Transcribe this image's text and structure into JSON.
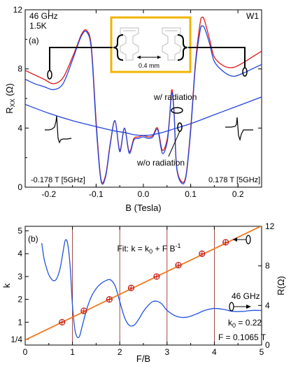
{
  "chart_data": [
    {
      "type": "line",
      "panel_label": "(a)",
      "annotations": {
        "freq": "46 GHz",
        "temp": "1.5K",
        "sample": "W1",
        "with_rad": "w/ radiation",
        "without_rad": "w/o radiation",
        "left_peak": "-0.178 T [5GHz]",
        "right_peak": "0.178 T [5GHz]",
        "scale": "0.4 mm"
      },
      "xlabel": "B (Tesla)",
      "ylabel_main": "R",
      "ylabel_sub": "XX",
      "ylabel_unit": " (Ω)",
      "xlim": [
        -0.25,
        0.25
      ],
      "ylim": [
        0,
        12
      ],
      "xticks": [
        "-0.2",
        "-0.1",
        "0.0",
        "0.1",
        "0.2"
      ],
      "xtick_values": [
        -0.2,
        -0.1,
        0.0,
        0.1,
        0.2
      ],
      "yticks": [
        "0",
        "4",
        "8",
        "12"
      ],
      "ytick_values": [
        0,
        4,
        8,
        12
      ],
      "colors": {
        "with_radiation": "#e01818",
        "without_radiation": "#2244dd",
        "purple": "#7a2a99",
        "inset_frame": "#f0b400"
      },
      "series": [
        {
          "color": "#e01818",
          "x": [
            -0.25,
            -0.23,
            -0.21,
            -0.19,
            -0.17,
            -0.15,
            -0.14,
            -0.13,
            -0.12,
            -0.11,
            -0.1,
            -0.09,
            -0.08,
            -0.07,
            -0.06,
            -0.05,
            -0.04,
            -0.03,
            -0.02,
            -0.01,
            0.0,
            0.01,
            0.02,
            0.03,
            0.04,
            0.05,
            0.055,
            0.06,
            0.065,
            0.07,
            0.08,
            0.09,
            0.1,
            0.11,
            0.12,
            0.125,
            0.13,
            0.14,
            0.15,
            0.17,
            0.19,
            0.21,
            0.23,
            0.25
          ],
          "values": [
            7.9,
            7.6,
            7.3,
            7.0,
            7.4,
            8.8,
            9.6,
            10.4,
            10.6,
            9.5,
            4.5,
            0.6,
            0.8,
            3.0,
            4.5,
            2.5,
            4.0,
            2.4,
            3.3,
            3.4,
            3.5,
            3.4,
            3.5,
            4.0,
            2.5,
            3.2,
            4.6,
            6.6,
            5.0,
            1.5,
            0.4,
            0.8,
            4.0,
            8.4,
            11.1,
            11.5,
            11.2,
            10.0,
            8.8,
            8.2,
            8.1,
            8.4,
            8.8,
            9.2
          ]
        },
        {
          "color": "#2244dd",
          "x": [
            -0.25,
            -0.23,
            -0.21,
            -0.19,
            -0.17,
            -0.15,
            -0.14,
            -0.13,
            -0.12,
            -0.11,
            -0.1,
            -0.09,
            -0.08,
            -0.07,
            -0.06,
            -0.05,
            -0.04,
            -0.03,
            -0.02,
            -0.01,
            0.0,
            0.01,
            0.02,
            0.03,
            0.04,
            0.05,
            0.055,
            0.06,
            0.065,
            0.07,
            0.08,
            0.09,
            0.1,
            0.11,
            0.12,
            0.125,
            0.13,
            0.14,
            0.15,
            0.17,
            0.19,
            0.21,
            0.23,
            0.25
          ],
          "values": [
            7.3,
            7.0,
            6.8,
            6.6,
            7.0,
            8.6,
            9.5,
            10.3,
            10.5,
            9.3,
            4.2,
            0.5,
            0.7,
            2.9,
            4.5,
            2.4,
            4.0,
            2.3,
            3.2,
            3.3,
            3.4,
            3.3,
            3.4,
            3.9,
            2.3,
            3.0,
            4.5,
            6.4,
            4.9,
            1.4,
            0.3,
            0.7,
            3.8,
            8.2,
            10.6,
            10.9,
            10.7,
            9.7,
            8.5,
            7.8,
            7.5,
            7.7,
            8.0,
            8.3
          ]
        },
        {
          "color": "#2244dd",
          "x": [
            -0.25,
            -0.2,
            -0.15,
            -0.1,
            -0.06,
            -0.04,
            -0.02,
            0.0,
            0.02,
            0.04,
            0.06,
            0.1,
            0.15,
            0.2,
            0.25
          ],
          "values": [
            5.6,
            5.0,
            4.5,
            4.1,
            3.8,
            3.7,
            3.55,
            3.5,
            3.55,
            3.7,
            3.9,
            4.3,
            4.9,
            5.5,
            6.1
          ]
        }
      ]
    },
    {
      "type": "line",
      "panel_label": "(b)",
      "fit_label": "Fit: k = k",
      "fit_sub0": "0",
      "fit_rest": " + F B",
      "fit_sup": "-1",
      "freq": "46 GHz",
      "k0_label": "k",
      "k0_sub": "0",
      "k0_value": " = 0.22",
      "F_label": "F = 0.1065 T",
      "xlabel": "F/B",
      "ylabel_left": "k",
      "ylabel_right": "R(Ω)",
      "xlim": [
        0,
        5
      ],
      "ylim_left": [
        0,
        5.2
      ],
      "ylim_right": [
        0,
        12
      ],
      "xticks": [
        "0",
        "1",
        "2",
        "3",
        "4",
        "5"
      ],
      "xtick_values": [
        0,
        1,
        2,
        3,
        4,
        5
      ],
      "yticks_left": [
        "1/4",
        "1",
        "2",
        "3",
        "4",
        "5"
      ],
      "ytick_left_values": [
        0.25,
        1,
        2,
        3,
        4,
        5
      ],
      "yticks_right": [
        "0",
        "4",
        "8",
        "12"
      ],
      "ytick_right_values": [
        0,
        4,
        8,
        12
      ],
      "vlines": [
        1,
        2,
        3,
        4
      ],
      "colors": {
        "fit": "#f07a20",
        "resistance": "#2255dd",
        "points": "#c2191a",
        "vline": "#8b1a1a"
      },
      "fit_line": {
        "k0": 0.22,
        "slope": 1.0,
        "x": [
          0,
          5
        ]
      },
      "points": {
        "x": [
          0.78,
          1.24,
          1.78,
          2.24,
          2.78,
          3.24,
          3.74,
          4.24
        ],
        "values": [
          1,
          1.5,
          2,
          2.5,
          3,
          3.5,
          4,
          4.5
        ]
      },
      "resistance": {
        "x": [
          0.35,
          0.4,
          0.45,
          0.5,
          0.55,
          0.6,
          0.65,
          0.7,
          0.75,
          0.8,
          0.85,
          0.9,
          0.95,
          1.0,
          1.05,
          1.1,
          1.15,
          1.2,
          1.3,
          1.4,
          1.5,
          1.6,
          1.7,
          1.8,
          1.9,
          2.0,
          2.1,
          2.2,
          2.3,
          2.4,
          2.5,
          2.6,
          2.7,
          2.8,
          2.9,
          3.0,
          3.2,
          3.4,
          3.6,
          3.8,
          4.0,
          4.2,
          4.4,
          4.6,
          4.8,
          5.0
        ],
        "values": [
          10.3,
          8.7,
          7.8,
          7.1,
          6.7,
          6.5,
          6.6,
          7.1,
          8.0,
          9.4,
          10.6,
          10.2,
          8.0,
          4.0,
          1.6,
          0.8,
          0.9,
          1.8,
          3.6,
          4.9,
          5.7,
          6.2,
          6.5,
          6.6,
          6.0,
          4.4,
          2.8,
          2.0,
          2.0,
          2.6,
          3.4,
          4.0,
          4.4,
          4.4,
          4.1,
          3.5,
          2.9,
          2.8,
          3.1,
          3.5,
          3.7,
          3.6,
          3.4,
          3.4,
          3.5,
          3.5
        ]
      }
    }
  ]
}
